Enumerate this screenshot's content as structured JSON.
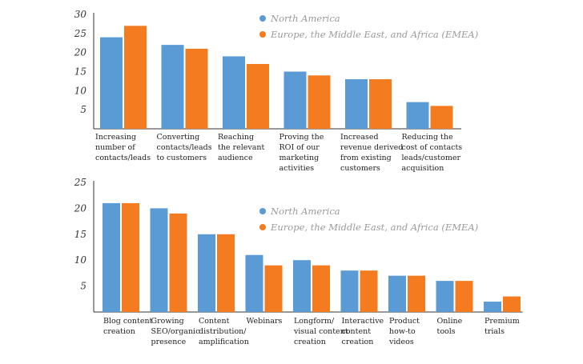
{
  "colors": {
    "north_america": "#5b9bd5",
    "emea": "#f47b20",
    "axis": "#333333",
    "legend_text": "#9a9a9a"
  },
  "chart_data": [
    {
      "type": "bar",
      "title": "",
      "xlabel": "",
      "ylabel": "",
      "ylim": [
        0,
        30
      ],
      "yticks": [
        5,
        10,
        15,
        20,
        25,
        30
      ],
      "grid": false,
      "legend_position": "top-right",
      "categories": [
        [
          "Increasing",
          "number of",
          "contacts/leads"
        ],
        [
          "Converting",
          "contacts/leads",
          "to customers"
        ],
        [
          "Reaching",
          "the relevant",
          "audience"
        ],
        [
          "Proving the",
          "ROI of our",
          "marketing",
          "activities"
        ],
        [
          "Increased",
          "revenue derived",
          "from existing",
          "customers"
        ],
        [
          "Reducing the",
          "cost of contacts",
          "leads/customer",
          "acquisition"
        ]
      ],
      "series": [
        {
          "name": "North America",
          "color_key": "north_america",
          "values": [
            24,
            22,
            19,
            15,
            13,
            7
          ]
        },
        {
          "name": "Europe, the Middle East, and Africa (EMEA)",
          "color_key": "emea",
          "values": [
            27,
            21,
            17,
            14,
            13,
            6
          ]
        }
      ]
    },
    {
      "type": "bar",
      "title": "",
      "xlabel": "",
      "ylabel": "",
      "ylim": [
        0,
        25
      ],
      "yticks": [
        5,
        10,
        15,
        20,
        25
      ],
      "grid": false,
      "legend_position": "top-right",
      "categories": [
        [
          "Blog content",
          "creation"
        ],
        [
          "Growing",
          "SEO/organic",
          "presence"
        ],
        [
          "Content",
          "distribution/",
          "amplification"
        ],
        [
          "Webinars"
        ],
        [
          "Longform/",
          "visual content",
          "creation"
        ],
        [
          "Interactive",
          "content",
          "creation"
        ],
        [
          "Product",
          "how-to",
          "videos"
        ],
        [
          "Online",
          "tools"
        ],
        [
          "Premium",
          "trials"
        ]
      ],
      "series": [
        {
          "name": "North America",
          "color_key": "north_america",
          "values": [
            21,
            20,
            15,
            11,
            10,
            8,
            7,
            6,
            2
          ]
        },
        {
          "name": "Europe, the Middle East, and Africa (EMEA)",
          "color_key": "emea",
          "values": [
            21,
            19,
            15,
            9,
            9,
            8,
            7,
            6,
            3
          ]
        }
      ]
    }
  ]
}
